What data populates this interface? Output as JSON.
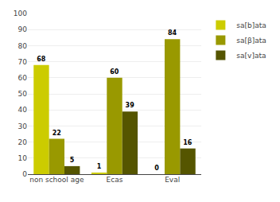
{
  "chart_data": {
    "type": "bar",
    "categories": [
      "non school age",
      "Ecas",
      "Eval"
    ],
    "series": [
      {
        "name": "sa[b]ata",
        "color": "#cccc00",
        "values": [
          68,
          1,
          0
        ]
      },
      {
        "name": "sa[β]ata",
        "color": "#999900",
        "values": [
          22,
          60,
          84
        ]
      },
      {
        "name": "sa[v]ata",
        "color": "#555500",
        "values": [
          5,
          39,
          16
        ]
      }
    ],
    "ylim": [
      0,
      100
    ],
    "yticks": [
      0,
      10,
      20,
      30,
      40,
      50,
      60,
      70,
      80,
      90,
      100
    ],
    "grid": true,
    "legend": "upper right",
    "data_labels": true
  }
}
